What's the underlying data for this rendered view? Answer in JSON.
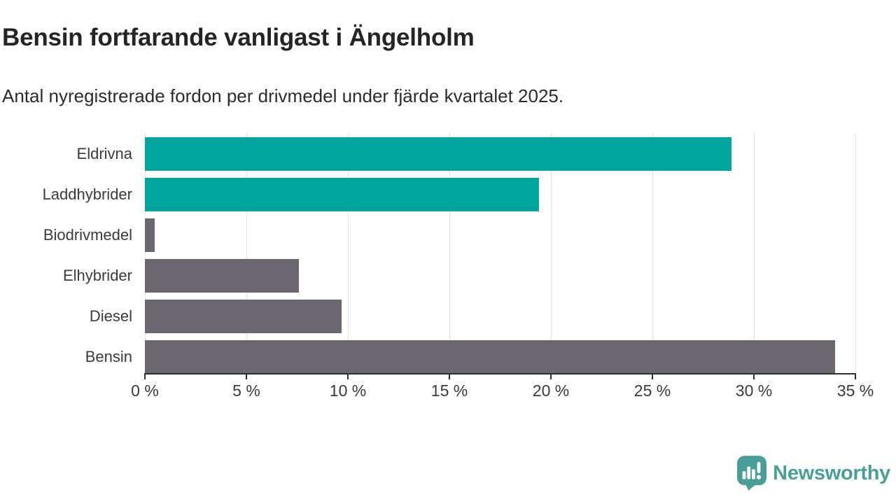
{
  "title": "Bensin fortfarande vanligast i Ängelholm",
  "subtitle": "Antal nyregistrerade fordon per drivmedel under fjärde kvartalet 2025.",
  "chart_data": {
    "type": "bar",
    "orientation": "horizontal",
    "title": "Bensin fortfarande vanligast i Ängelholm",
    "subtitle": "Antal nyregistrerade fordon per drivmedel under fjärde kvartalet 2025.",
    "categories": [
      "Eldrivna",
      "Laddhybrider",
      "Biodrivmedel",
      "Elhybrider",
      "Diesel",
      "Bensin"
    ],
    "values": [
      28.9,
      19.4,
      0.5,
      7.6,
      9.7,
      34.0
    ],
    "unit": "%",
    "xlabel": "",
    "ylabel": "",
    "xlim": [
      0,
      35
    ],
    "xticks": [
      0,
      5,
      10,
      15,
      20,
      25,
      30,
      35
    ],
    "xtick_labels": [
      "0 %",
      "5 %",
      "10 %",
      "15 %",
      "20 %",
      "25 %",
      "30 %",
      "35 %"
    ],
    "grid": true,
    "legend": false,
    "bar_colors": [
      "#00a49a",
      "#00a49a",
      "#6c6870",
      "#6c6870",
      "#6c6870",
      "#6c6870"
    ],
    "highlight_color": "#00a49a",
    "default_bar_color": "#6c6870"
  },
  "colors": {
    "background": "#ffffff",
    "title_text": "#242424",
    "axis_text": "#3a3a3a",
    "gridline": "#e3e3e3",
    "axis_line": "#2f2f2f",
    "logo_teal": "#4a9e98"
  },
  "branding": {
    "logo_text": "Newsworthy",
    "logo_icon": "speech-bubble-bar-chart-icon"
  }
}
